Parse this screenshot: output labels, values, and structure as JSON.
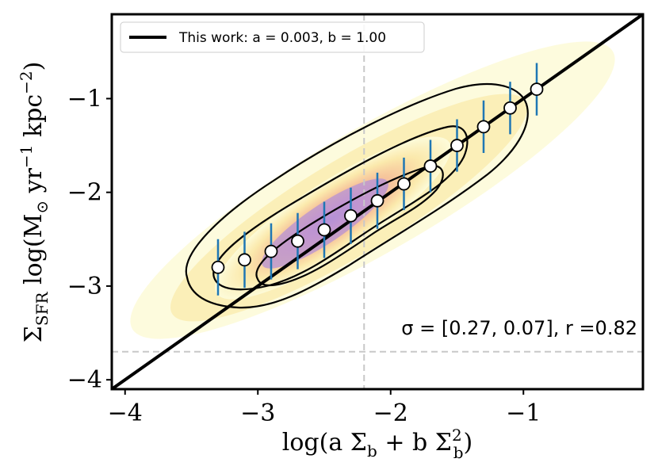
{
  "chart_data": {
    "type": "scatter",
    "title": "",
    "xlabel": "log(a Σ_b + b Σ_b^2)",
    "ylabel": "Σ_SFR log(M_⊙ yr^-1 kpc^-2)",
    "xlim": [
      -4.1,
      -0.1
    ],
    "ylim": [
      -4.1,
      -0.1
    ],
    "xticks": [
      -4,
      -3,
      -2,
      -1
    ],
    "yticks": [
      -4,
      -3,
      -2,
      -1
    ],
    "xtick_labels": [
      "−4",
      "−3",
      "−2",
      "−1"
    ],
    "ytick_labels": [
      "−4",
      "−3",
      "−2",
      "−1"
    ],
    "grid": false,
    "legend_position": "top-left",
    "legend": [
      {
        "label": "This work: a = 0.003, b = 1.00",
        "color": "#000000"
      }
    ],
    "fit_line": {
      "name": "This work: a = 0.003, b = 1.00",
      "slope": 1.0,
      "intercept": 0.0
    },
    "reference_lines": {
      "vertical_x": -2.2,
      "horizontal_y": -3.7
    },
    "binned_medians": {
      "x": [
        -3.3,
        -3.1,
        -2.9,
        -2.7,
        -2.5,
        -2.3,
        -2.1,
        -1.9,
        -1.7,
        -1.5,
        -1.3,
        -1.1,
        -0.9
      ],
      "y": [
        -2.8,
        -2.72,
        -2.63,
        -2.52,
        -2.4,
        -2.25,
        -2.09,
        -1.91,
        -1.72,
        -1.5,
        -1.3,
        -1.1,
        -0.9
      ],
      "err": [
        0.3,
        0.3,
        0.3,
        0.3,
        0.3,
        0.3,
        0.3,
        0.28,
        0.28,
        0.28,
        0.28,
        0.28,
        0.28
      ]
    },
    "error_bar_color": "#1f77b4",
    "annotation": "σ = [0.27, 0.07], r =0.82"
  }
}
